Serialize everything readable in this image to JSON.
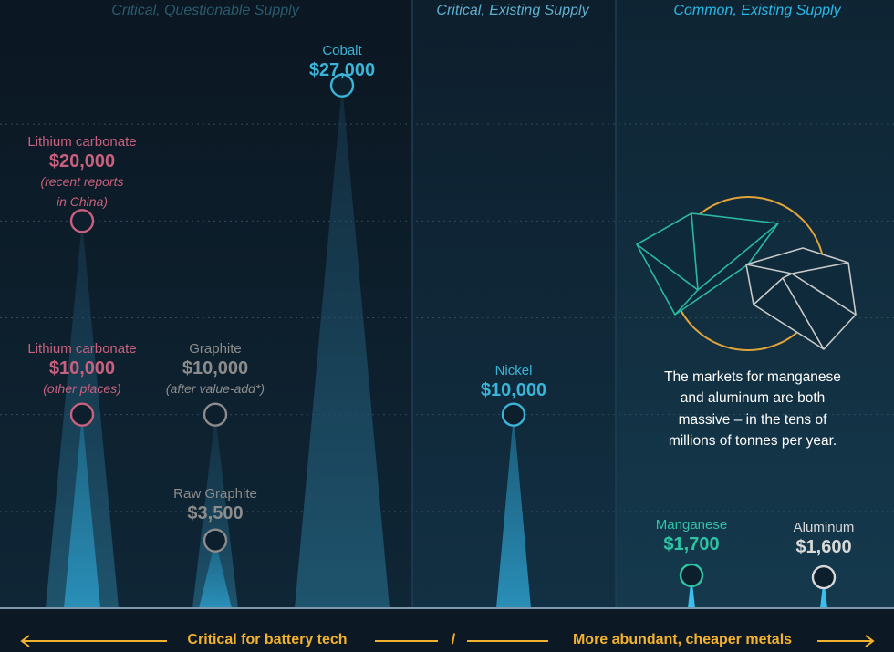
{
  "chart_data": {
    "type": "bar",
    "title": "",
    "xlabel": "",
    "ylabel": "",
    "ylim": [
      0,
      30000
    ],
    "grid": true,
    "sections": [
      {
        "label": "Critical, Questionable Supply",
        "color": "#2a5a6e"
      },
      {
        "label": "Critical, Existing Supply",
        "color": "#5fb0d0"
      },
      {
        "label": "Common, Existing Supply",
        "color": "#2ab8e6"
      }
    ],
    "items": [
      {
        "name": "Lithium carbonate",
        "price_label": "$20,000",
        "note": [
          "(recent reports",
          "in China)"
        ],
        "value": 20000,
        "color": "#c8607e"
      },
      {
        "name": "Lithium carbonate",
        "price_label": "$10,000",
        "note": [
          "(other places)"
        ],
        "value": 10000,
        "color": "#c8607e"
      },
      {
        "name": "Graphite",
        "price_label": "$10,000",
        "note": [
          "(after value-add*)"
        ],
        "value": 10000,
        "color": "#8c8c8c"
      },
      {
        "name": "Raw Graphite",
        "price_label": "$3,500",
        "note": [],
        "value": 3500,
        "color": "#8c8c8c"
      },
      {
        "name": "Cobalt",
        "price_label": "$27,000",
        "note": [],
        "value": 27000,
        "color": "#3ab4d8"
      },
      {
        "name": "Nickel",
        "price_label": "$10,000",
        "note": [],
        "value": 10000,
        "color": "#3ab4d8"
      },
      {
        "name": "Manganese",
        "price_label": "$1,700",
        "note": [],
        "value": 1700,
        "color": "#2ec4a4"
      },
      {
        "name": "Aluminum",
        "price_label": "$1,600",
        "note": [],
        "value": 1600,
        "color": "#d8d8d8"
      }
    ],
    "callout": [
      "The markets for manganese",
      "and aluminum are both",
      "massive – in the tens of",
      "millions of tonnes per year."
    ],
    "footer": {
      "left": "Critical for battery tech",
      "separator": "/",
      "right": "More abundant, cheaper metals",
      "arrow_color": "#f2b12e"
    }
  }
}
